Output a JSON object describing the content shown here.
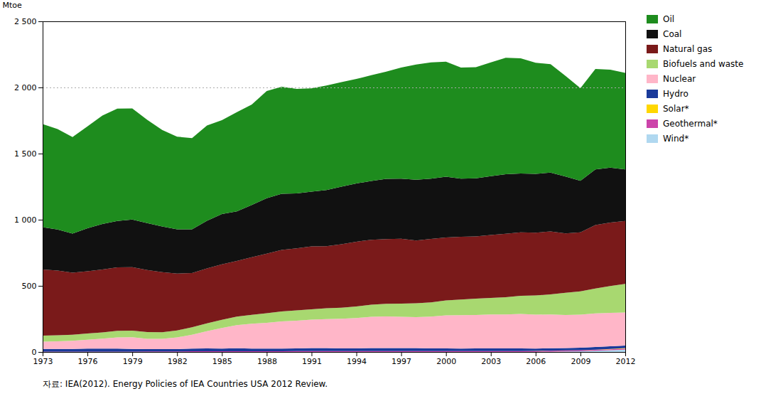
{
  "chart_data": {
    "type": "area",
    "stacked": true,
    "x": [
      1973,
      1974,
      1975,
      1976,
      1977,
      1978,
      1979,
      1980,
      1981,
      1982,
      1983,
      1984,
      1985,
      1986,
      1987,
      1988,
      1989,
      1990,
      1991,
      1992,
      1993,
      1994,
      1995,
      1996,
      1997,
      1998,
      1999,
      2000,
      2001,
      2002,
      2003,
      2004,
      2005,
      2006,
      2007,
      2008,
      2009,
      2010,
      2011,
      2012
    ],
    "series": [
      {
        "name": "Wind*",
        "color": "#b0d8f0",
        "values": [
          0,
          0,
          0,
          0,
          0,
          0,
          0,
          0,
          0,
          0,
          0,
          0,
          0,
          0,
          0,
          0,
          0,
          0,
          0,
          0,
          0,
          0,
          0,
          0,
          0,
          0,
          0,
          0,
          0,
          0,
          0,
          0,
          0,
          0,
          2,
          4,
          6,
          9,
          13,
          18
        ]
      },
      {
        "name": "Geothermal*",
        "color": "#cc44aa",
        "values": [
          3,
          3,
          3,
          3,
          3,
          3,
          3,
          4,
          4,
          4,
          5,
          5,
          6,
          6,
          6,
          6,
          6,
          7,
          7,
          7,
          7,
          7,
          7,
          7,
          7,
          7,
          7,
          7,
          7,
          7,
          7,
          7,
          7,
          7,
          7,
          7,
          7,
          7,
          7,
          7
        ]
      },
      {
        "name": "Solar*",
        "color": "#ffd700",
        "values": [
          0,
          0,
          0,
          0,
          0,
          0,
          0,
          0,
          0,
          0,
          0,
          0,
          0,
          0,
          0,
          0,
          0,
          0,
          0,
          0,
          0,
          0,
          0,
          0,
          0,
          0,
          0,
          0,
          0,
          0,
          0,
          0,
          0,
          1,
          1,
          1,
          1,
          2,
          3,
          5
        ]
      },
      {
        "name": "Hydro",
        "color": "#1a3a9a",
        "values": [
          20,
          20,
          20,
          22,
          22,
          22,
          20,
          18,
          17,
          18,
          20,
          22,
          20,
          22,
          20,
          20,
          20,
          20,
          22,
          22,
          20,
          20,
          22,
          22,
          22,
          22,
          20,
          20,
          18,
          20,
          20,
          20,
          20,
          18,
          18,
          18,
          18,
          20,
          20,
          18
        ]
      },
      {
        "name": "Nuclear",
        "color": "#ffb6c8",
        "values": [
          55,
          58,
          62,
          68,
          76,
          85,
          88,
          78,
          78,
          88,
          105,
          130,
          155,
          175,
          188,
          195,
          205,
          210,
          215,
          220,
          225,
          230,
          237,
          240,
          237,
          234,
          240,
          250,
          253,
          253,
          256,
          256,
          260,
          256,
          256,
          250,
          250,
          253,
          253,
          250
        ]
      },
      {
        "name": "Biofuels and waste",
        "color": "#a8d870",
        "values": [
          45,
          45,
          45,
          47,
          47,
          50,
          50,
          50,
          50,
          53,
          57,
          60,
          62,
          65,
          67,
          72,
          75,
          77,
          79,
          81,
          83,
          87,
          92,
          95,
          100,
          105,
          108,
          113,
          118,
          123,
          126,
          131,
          138,
          145,
          152,
          167,
          177,
          189,
          203,
          217
        ]
      },
      {
        "name": "Natural gas",
        "color": "#7a1a1a",
        "values": [
          500,
          490,
          470,
          470,
          475,
          480,
          480,
          470,
          455,
          430,
          410,
          415,
          420,
          420,
          435,
          450,
          465,
          470,
          475,
          470,
          480,
          490,
          490,
          490,
          490,
          475,
          480,
          475,
          475,
          470,
          475,
          480,
          480,
          475,
          475,
          450,
          445,
          480,
          480,
          475
        ]
      },
      {
        "name": "Coal",
        "color": "#111111",
        "values": [
          320,
          310,
          295,
          325,
          345,
          350,
          360,
          355,
          345,
          335,
          330,
          360,
          380,
          375,
          395,
          420,
          425,
          415,
          415,
          425,
          435,
          440,
          445,
          455,
          455,
          460,
          455,
          460,
          440,
          440,
          445,
          450,
          445,
          445,
          445,
          430,
          390,
          420,
          415,
          390
        ]
      },
      {
        "name": "Oil",
        "color": "#1e8c1e",
        "values": [
          780,
          760,
          730,
          770,
          820,
          850,
          840,
          780,
          730,
          700,
          690,
          720,
          710,
          750,
          760,
          810,
          810,
          790,
          780,
          790,
          790,
          790,
          800,
          810,
          840,
          870,
          880,
          870,
          840,
          840,
          860,
          880,
          870,
          840,
          820,
          760,
          700,
          760,
          740,
          730
        ]
      }
    ],
    "ylabel": "Mtoe",
    "xlim": [
      1973,
      2012
    ],
    "xticks": [
      1973,
      1976,
      1979,
      1982,
      1985,
      1988,
      1991,
      1994,
      1997,
      2000,
      2003,
      2006,
      2009,
      2012
    ],
    "ylim": [
      0,
      2500
    ],
    "yticks": [
      0,
      500,
      {
        "value": 1000,
        "label": "1 000"
      },
      {
        "value": 1500,
        "label": "1 500"
      },
      {
        "value": 2000,
        "label": "2 000"
      },
      {
        "value": 2500,
        "label": "2 500"
      }
    ],
    "reference_line": 2000,
    "caption": "자료: IEA(2012). Energy Policies of IEA Countries USA 2012 Review.",
    "grid": false,
    "legend": "right"
  }
}
